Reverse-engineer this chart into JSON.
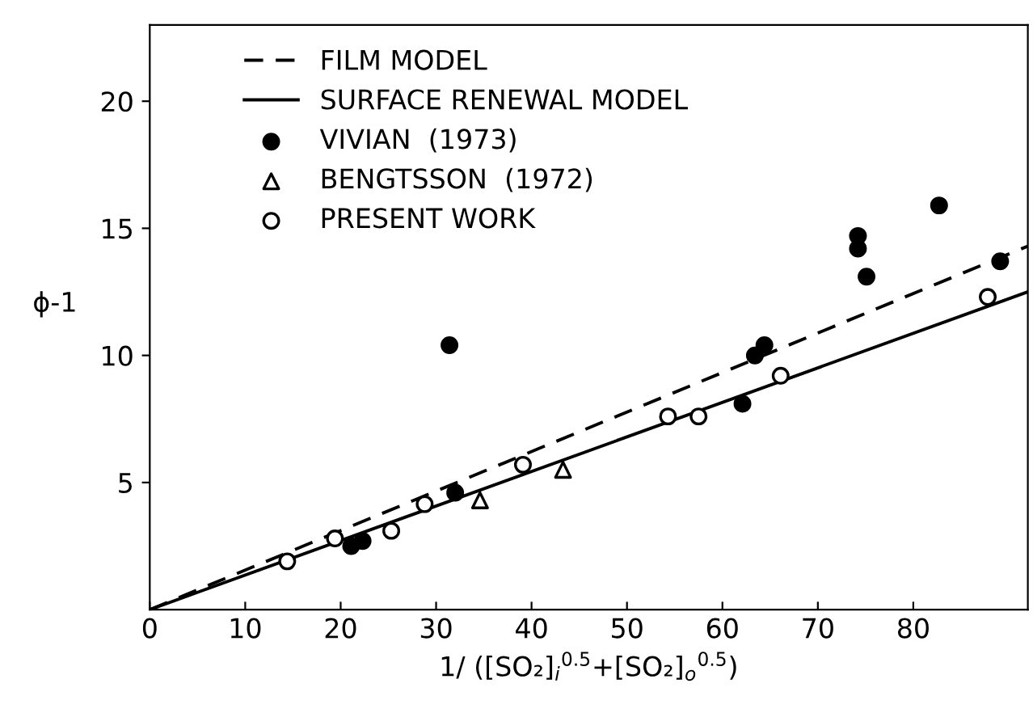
{
  "chart_data": {
    "type": "scatter",
    "xlabel": "1/ ([SO₂]$_{i}$$^{0.5}$+[SO₂]$_{o}$$^{0.5}$)",
    "ylabel": "ϕ-1",
    "xlim": [
      0,
      92
    ],
    "ylim": [
      0,
      23
    ],
    "xticks": [
      0,
      10,
      20,
      30,
      40,
      50,
      60,
      70,
      80
    ],
    "yticks": [
      5,
      10,
      15,
      20
    ],
    "grid": false,
    "legend": "top left",
    "series": [
      {
        "name": "FILM MODEL",
        "type": "line",
        "line_style": "dashed",
        "marker": "none",
        "color": "#000000",
        "x": [
          0,
          92
        ],
        "values": [
          0,
          14.3
        ]
      },
      {
        "name": "SURFACE RENEWAL MODEL",
        "type": "line",
        "line_style": "solid",
        "marker": "none",
        "color": "#000000",
        "x": [
          0,
          92
        ],
        "values": [
          0,
          12.5
        ]
      },
      {
        "name": "VIVIAN  (1973)",
        "marker": "circle",
        "color": "#000000",
        "x": [
          31.4,
          32.0,
          21.1,
          22.3,
          62.1,
          63.4,
          64.4,
          74.2,
          74.2,
          75.1,
          82.7,
          89.1
        ],
        "values": [
          10.4,
          4.6,
          2.5,
          2.7,
          8.1,
          10.0,
          10.4,
          14.7,
          14.2,
          13.1,
          15.9,
          13.7
        ]
      },
      {
        "name": "BENGTSSON  (1972)",
        "marker": "triangle",
        "color": "#000000",
        "x": [
          34.6,
          43.3
        ],
        "values": [
          4.3,
          5.5
        ]
      },
      {
        "name": "PRESENT WORK",
        "marker": "circle",
        "color": "#000000",
        "x": [
          14.4,
          19.4,
          25.3,
          28.8,
          39.1,
          54.3,
          57.5,
          66.1,
          87.8
        ],
        "values": [
          1.9,
          2.8,
          3.1,
          4.15,
          5.7,
          7.6,
          7.6,
          9.2,
          12.3
        ]
      }
    ]
  }
}
